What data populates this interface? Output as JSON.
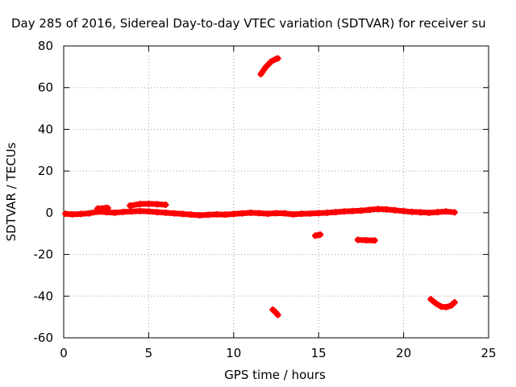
{
  "chart_data": {
    "type": "scatter",
    "title": "Day 285 of 2016, Sidereal Day-to-day VTEC variation (SDTVAR) for receiver su",
    "xlabel": "GPS time / hours",
    "ylabel": "SDTVAR / TECUs",
    "xlim": [
      0,
      25
    ],
    "ylim": [
      -60,
      80
    ],
    "xticks": [
      0,
      5,
      10,
      15,
      20,
      25
    ],
    "yticks": [
      -60,
      -40,
      -20,
      0,
      20,
      40,
      60,
      80
    ],
    "grid": true,
    "legend": "none",
    "series_color": "#ff0000",
    "segments": [
      {
        "points": [
          [
            0.1,
            -0.5
          ],
          [
            0.5,
            -0.8
          ],
          [
            1.0,
            -0.6
          ],
          [
            1.5,
            -0.3
          ],
          [
            2.0,
            0.5
          ],
          [
            2.5,
            0.3
          ],
          [
            3.0,
            0.0
          ],
          [
            3.5,
            0.4
          ],
          [
            4.0,
            0.6
          ],
          [
            4.5,
            0.8
          ],
          [
            5.0,
            0.6
          ],
          [
            5.5,
            0.3
          ],
          [
            6.0,
            0.0
          ],
          [
            6.5,
            -0.3
          ],
          [
            7.0,
            -0.6
          ],
          [
            7.5,
            -0.9
          ],
          [
            8.0,
            -1.2
          ],
          [
            8.5,
            -1.0
          ],
          [
            9.0,
            -0.8
          ],
          [
            9.5,
            -0.9
          ],
          [
            10.0,
            -0.6
          ],
          [
            10.5,
            -0.3
          ],
          [
            11.0,
            0.0
          ],
          [
            11.5,
            -0.2
          ],
          [
            12.0,
            -0.5
          ],
          [
            12.5,
            -0.2
          ],
          [
            13.0,
            -0.3
          ],
          [
            13.5,
            -0.8
          ],
          [
            14.0,
            -0.5
          ],
          [
            14.5,
            -0.4
          ],
          [
            15.0,
            -0.2
          ],
          [
            15.5,
            0.0
          ],
          [
            16.0,
            0.3
          ],
          [
            16.5,
            0.6
          ],
          [
            17.0,
            0.8
          ],
          [
            17.5,
            1.0
          ],
          [
            18.0,
            1.4
          ],
          [
            18.5,
            1.8
          ],
          [
            19.0,
            1.6
          ],
          [
            19.5,
            1.2
          ],
          [
            20.0,
            0.8
          ],
          [
            20.5,
            0.4
          ],
          [
            21.0,
            0.2
          ],
          [
            21.5,
            0.0
          ],
          [
            22.0,
            0.3
          ],
          [
            22.5,
            0.6
          ],
          [
            23.0,
            0.2
          ]
        ]
      },
      {
        "points": [
          [
            2.0,
            2.0
          ],
          [
            2.5,
            2.3
          ],
          [
            2.6,
            2.2
          ]
        ]
      },
      {
        "points": [
          [
            3.9,
            3.4
          ],
          [
            4.5,
            4.2
          ],
          [
            5.0,
            4.3
          ],
          [
            5.5,
            4.1
          ],
          [
            6.0,
            3.8
          ]
        ]
      },
      {
        "points": [
          [
            11.6,
            66.5
          ],
          [
            11.9,
            70.0
          ],
          [
            12.2,
            72.5
          ],
          [
            12.5,
            73.8
          ],
          [
            12.6,
            74.0
          ]
        ]
      },
      {
        "points": [
          [
            12.3,
            -46.5
          ],
          [
            12.5,
            -48.0
          ],
          [
            12.6,
            -49.0
          ]
        ]
      },
      {
        "points": [
          [
            14.8,
            -11.0
          ],
          [
            15.0,
            -10.7
          ],
          [
            15.1,
            -10.5
          ]
        ]
      },
      {
        "points": [
          [
            17.3,
            -13.0
          ],
          [
            17.8,
            -13.2
          ],
          [
            18.3,
            -13.3
          ]
        ]
      },
      {
        "points": [
          [
            21.6,
            -41.5
          ],
          [
            21.9,
            -43.5
          ],
          [
            22.2,
            -45.0
          ],
          [
            22.5,
            -45.3
          ],
          [
            22.8,
            -44.5
          ],
          [
            23.0,
            -43.0
          ]
        ]
      }
    ]
  }
}
